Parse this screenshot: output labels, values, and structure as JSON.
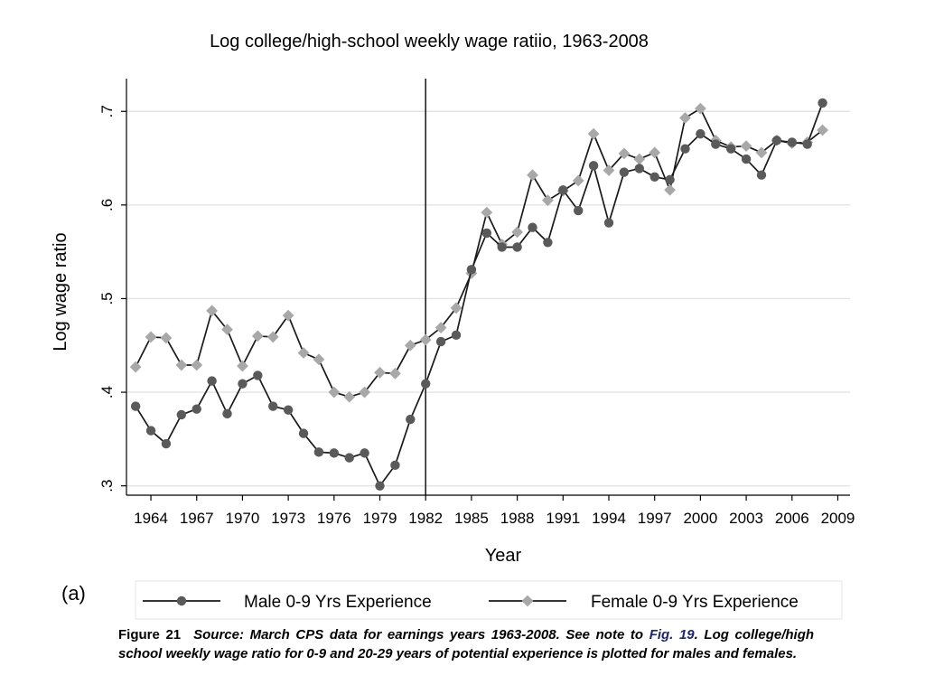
{
  "chart_data": {
    "type": "line",
    "title": "Log college/high-school weekly wage ratiio, 1963-2008",
    "xlabel": "Year",
    "ylabel": "Log wage ratio",
    "xlim": [
      1962.4,
      2009.8
    ],
    "ylim": [
      0.29,
      0.735
    ],
    "x_ticks": [
      1964,
      1967,
      1970,
      1973,
      1976,
      1979,
      1982,
      1985,
      1988,
      1991,
      1994,
      1997,
      2000,
      2003,
      2006,
      2009
    ],
    "y_ticks": [
      0.3,
      0.4,
      0.5,
      0.6,
      0.7
    ],
    "y_tick_labels": [
      ".3",
      ".4",
      ".5",
      ".6",
      ".7"
    ],
    "grid": "horizontal",
    "vertical_line_at": 1982,
    "legend_position": "bottom",
    "x": [
      1963,
      1964,
      1965,
      1966,
      1967,
      1968,
      1969,
      1970,
      1971,
      1972,
      1973,
      1974,
      1975,
      1976,
      1977,
      1978,
      1979,
      1980,
      1981,
      1982,
      1983,
      1984,
      1985,
      1986,
      1987,
      1988,
      1989,
      1990,
      1991,
      1992,
      1993,
      1994,
      1995,
      1996,
      1997,
      1998,
      1999,
      2000,
      2001,
      2002,
      2003,
      2004,
      2005,
      2006,
      2007,
      2008
    ],
    "series": [
      {
        "name": "Male 0-9 Yrs Experience",
        "color": "#5a5a5a",
        "marker": "circle",
        "values": [
          0.385,
          0.359,
          0.345,
          0.376,
          0.382,
          0.412,
          0.377,
          0.409,
          0.418,
          0.385,
          0.381,
          0.356,
          0.336,
          0.335,
          0.33,
          0.335,
          0.3,
          0.322,
          0.371,
          0.409,
          0.454,
          0.461,
          0.531,
          0.57,
          0.555,
          0.555,
          0.576,
          0.56,
          0.616,
          0.594,
          0.642,
          0.581,
          0.635,
          0.639,
          0.63,
          0.627,
          0.66,
          0.676,
          0.665,
          0.66,
          0.649,
          0.632,
          0.669,
          0.667,
          0.665,
          0.709
        ]
      },
      {
        "name": "Female 0-9 Yrs Experience",
        "color": "#a8a8a8",
        "marker": "diamond",
        "values": [
          0.427,
          0.459,
          0.458,
          0.429,
          0.429,
          0.487,
          0.467,
          0.428,
          0.46,
          0.459,
          0.482,
          0.442,
          0.435,
          0.4,
          0.395,
          0.4,
          0.421,
          0.42,
          0.45,
          0.456,
          0.469,
          0.49,
          0.527,
          0.592,
          0.558,
          0.571,
          0.632,
          0.605,
          0.615,
          0.626,
          0.676,
          0.637,
          0.655,
          0.649,
          0.656,
          0.616,
          0.693,
          0.703,
          0.669,
          0.662,
          0.663,
          0.656,
          0.669,
          0.666,
          0.667,
          0.68
        ]
      }
    ]
  },
  "panel_label": "(a)",
  "caption": {
    "figure_number": "Figure 21",
    "text_before_link": "Source: March CPS data for earnings years 1963-2008. See note to ",
    "link_text": "Fig. 19",
    "text_after_link": ". Log college/high school weekly wage ratio for 0-9 and 20-29 years of potential experience is plotted for males and females."
  }
}
